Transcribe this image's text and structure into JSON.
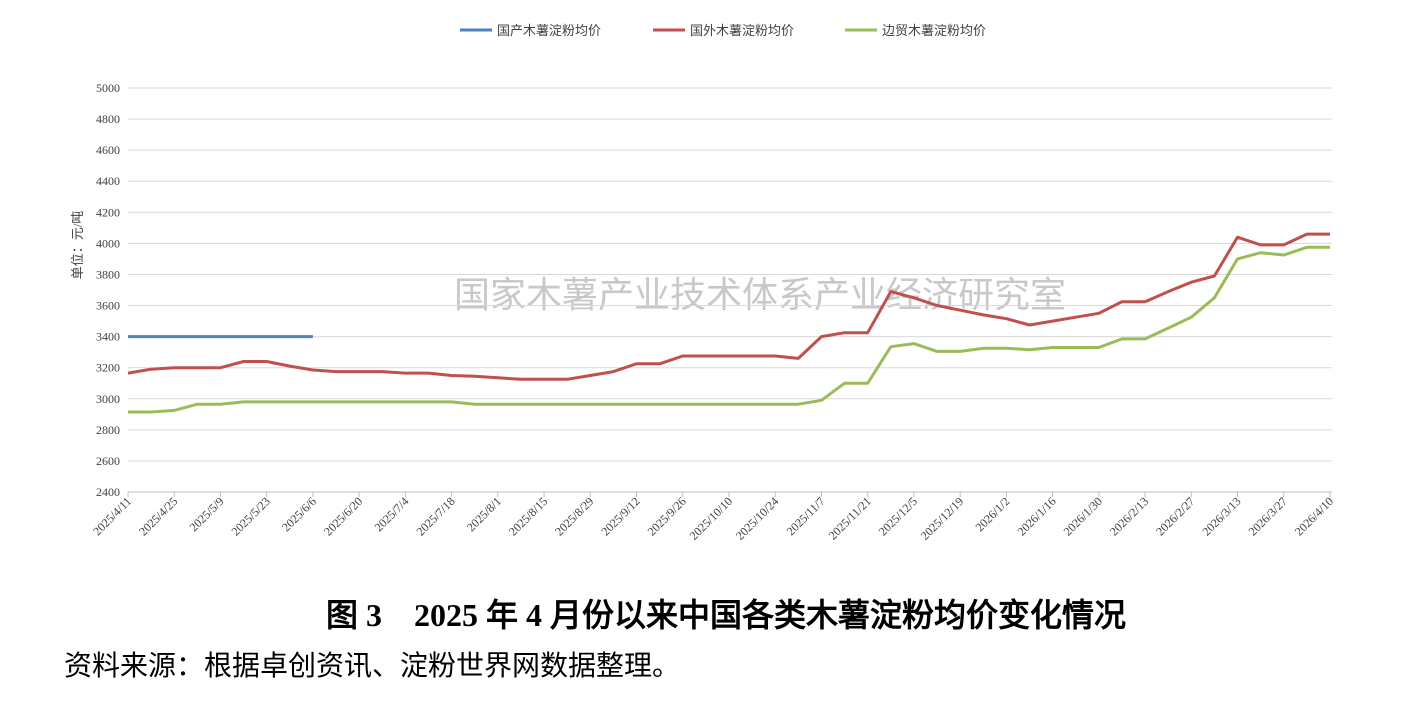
{
  "chart_data": {
    "type": "line",
    "title": "图 3　2025 年 4 月份以来中国各类木薯淀粉均价变化情况",
    "source": "资料来源：根据卓创资讯、淀粉世界网数据整理。",
    "watermark": "国家木薯产业技术体系产业经济研究室",
    "y_label": "单位：元/吨",
    "categories": [
      "2025/4/11",
      null,
      "2025/4/25",
      null,
      "2025/5/9",
      null,
      "2025/5/23",
      null,
      "2025/6/6",
      null,
      "2025/6/20",
      null,
      "2025/7/4",
      null,
      "2025/7/18",
      null,
      "2025/8/1",
      null,
      "2025/8/15",
      null,
      "2025/8/29",
      null,
      "2025/9/12",
      null,
      "2025/9/26",
      null,
      "2025/10/10",
      null,
      "2025/10/24",
      null,
      "2025/11/7",
      null,
      "2025/11/21",
      null,
      "2025/12/5",
      null,
      "2025/12/19",
      null,
      "2026/1/2",
      null,
      "2026/1/16",
      null,
      "2026/1/30",
      null,
      "2026/2/13",
      null,
      "2026/2/27",
      null,
      "2026/3/13",
      null,
      "2026/3/27",
      null,
      "2026/4/10"
    ],
    "series": [
      {
        "name": "国产木薯淀粉均价",
        "color": "#4f81bd",
        "values": [
          3400,
          3400,
          3400,
          3400,
          3400,
          3400,
          3400,
          3400,
          3400,
          null,
          null,
          null,
          null,
          null,
          null,
          null,
          null,
          null,
          null,
          null,
          null,
          null,
          null,
          null,
          null,
          null,
          null,
          null,
          null,
          null,
          null,
          null,
          null,
          null,
          null,
          null,
          null,
          null,
          null,
          null,
          null,
          null,
          null,
          null,
          null,
          null,
          null,
          null,
          null,
          null,
          null,
          null,
          null
        ]
      },
      {
        "name": "国外木薯淀粉均价",
        "color": "#c0504d",
        "values": [
          3165,
          3190,
          3200,
          3200,
          3200,
          3240,
          3240,
          3210,
          3185,
          3175,
          3175,
          3175,
          3165,
          3165,
          3150,
          3145,
          3135,
          3125,
          3125,
          3125,
          3150,
          3175,
          3225,
          3225,
          3275,
          3275,
          3275,
          3275,
          3275,
          3260,
          3400,
          3425,
          3425,
          3690,
          3650,
          3600,
          3570,
          3540,
          3515,
          3475,
          3500,
          3525,
          3550,
          3625,
          3625,
          3690,
          3750,
          3790,
          4040,
          3990,
          3990,
          4060,
          4060
        ]
      },
      {
        "name": "边贸木薯淀粉均价",
        "color": "#9bbb59",
        "values": [
          2915,
          2915,
          2925,
          2965,
          2965,
          2980,
          2980,
          2980,
          2980,
          2980,
          2980,
          2980,
          2980,
          2980,
          2980,
          2965,
          2965,
          2965,
          2965,
          2965,
          2965,
          2965,
          2965,
          2965,
          2965,
          2965,
          2965,
          2965,
          2965,
          2965,
          2990,
          3100,
          3100,
          3335,
          3355,
          3305,
          3305,
          3325,
          3325,
          3315,
          3330,
          3330,
          3330,
          3385,
          3385,
          3455,
          3525,
          3650,
          3900,
          3940,
          3925,
          3975,
          3975
        ]
      }
    ],
    "ylim": [
      2400,
      5000
    ],
    "yticks": [
      2400,
      2600,
      2800,
      3000,
      3200,
      3400,
      3600,
      3800,
      4000,
      4200,
      4400,
      4600,
      4800,
      5000
    ],
    "grid": true
  }
}
